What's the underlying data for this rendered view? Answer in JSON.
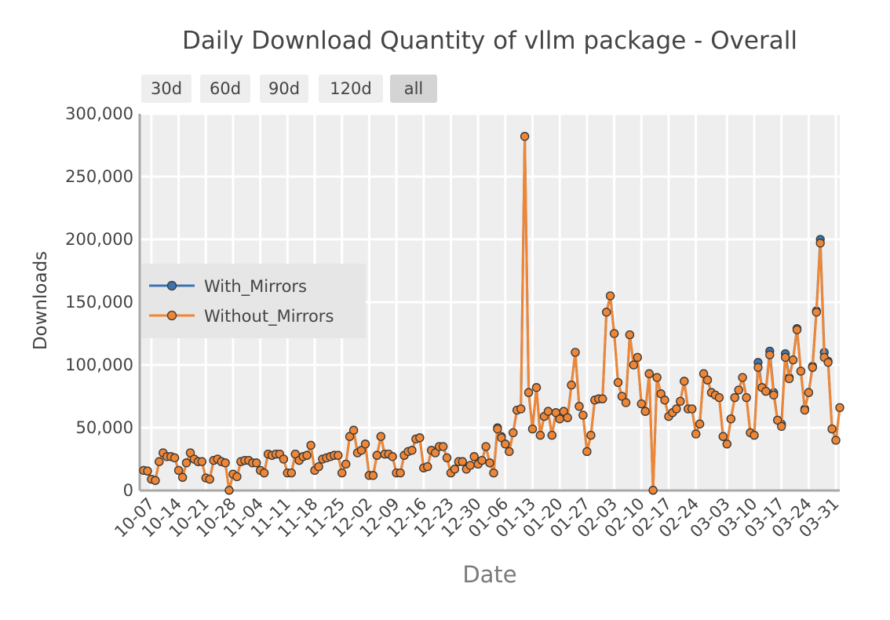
{
  "range_selector": {
    "buttons": [
      "30d",
      "60d",
      "90d",
      "120d",
      "all"
    ],
    "active": "all"
  },
  "colors": {
    "with_mirrors": "#3b75af",
    "without_mirrors": "#ef8636",
    "plot_bg": "#eeeeee",
    "grid": "#ffffff",
    "marker_outline": "#3a3a3a"
  },
  "chart_data": {
    "type": "line",
    "title": "Daily Download Quantity of vllm package - Overall",
    "xlabel": "Date",
    "ylabel": "Downloads",
    "x_start": "2023-10-05",
    "x_tick_labels": [
      "10-07",
      "10-14",
      "10-21",
      "10-28",
      "11-04",
      "11-11",
      "11-18",
      "11-25",
      "12-02",
      "12-09",
      "12-16",
      "12-23",
      "12-30",
      "01-06",
      "01-13",
      "01-20",
      "01-27",
      "02-03",
      "02-10",
      "02-17",
      "02-24",
      "03-03",
      "03-10",
      "03-17",
      "03-24",
      "03-31"
    ],
    "y_ticks": [
      0,
      50000,
      100000,
      150000,
      200000,
      250000,
      300000
    ],
    "y_tick_labels": [
      "0",
      "50,000",
      "100,000",
      "150,000",
      "200,000",
      "250,000",
      "300,000"
    ],
    "ylim": [
      0,
      300000
    ],
    "grid": true,
    "legend_position": "middle-left",
    "series": [
      {
        "name": "With_Mirrors",
        "values": [
          16000,
          15500,
          9000,
          8000,
          23000,
          30000,
          27000,
          27000,
          26000,
          16000,
          10500,
          22000,
          30000,
          25000,
          23000,
          23000,
          10000,
          9000,
          24000,
          25000,
          23000,
          22000,
          200,
          13000,
          11000,
          23000,
          24000,
          24000,
          22000,
          22000,
          16000,
          14000,
          29000,
          28000,
          29000,
          29000,
          25000,
          14000,
          14000,
          29000,
          24000,
          27000,
          28000,
          36000,
          16000,
          19000,
          25000,
          26000,
          27000,
          28000,
          28000,
          14000,
          21000,
          43000,
          48000,
          30000,
          32000,
          37000,
          12000,
          12000,
          28000,
          43000,
          29000,
          29000,
          27000,
          14000,
          14000,
          28000,
          31000,
          32000,
          41000,
          42000,
          18000,
          19000,
          32000,
          30000,
          35000,
          35000,
          26000,
          14000,
          17000,
          23000,
          23000,
          17000,
          20000,
          27000,
          21000,
          24000,
          35000,
          22000,
          14000,
          50000,
          43000,
          37000,
          31000,
          46000,
          64000,
          65000,
          282000,
          78000,
          49000,
          82000,
          44000,
          59000,
          63000,
          44000,
          62000,
          57000,
          63000,
          58000,
          84000,
          110000,
          67000,
          60000,
          31000,
          44000,
          72000,
          73000,
          73000,
          142000,
          155000,
          125000,
          86000,
          75000,
          70000,
          124000,
          100000,
          106000,
          69000,
          63000,
          93000,
          200,
          90000,
          77000,
          72000,
          59000,
          62000,
          65000,
          71000,
          87000,
          65000,
          65000,
          45000,
          53000,
          93000,
          88000,
          78000,
          76000,
          74000,
          43000,
          37000,
          57000,
          74000,
          80000,
          90000,
          74000,
          46000,
          44000,
          102000,
          82000,
          79000,
          111000,
          78000,
          56000,
          53000,
          109000,
          90000,
          104000,
          129000,
          95000,
          65000,
          78000,
          99000,
          143000,
          200000,
          110000,
          103000,
          49000,
          40000,
          66000
        ]
      },
      {
        "name": "Without_Mirrors",
        "values": [
          16000,
          15500,
          9000,
          8000,
          23000,
          30000,
          27000,
          27000,
          26000,
          16000,
          10500,
          22000,
          30000,
          25000,
          23000,
          23000,
          10000,
          9000,
          24000,
          25000,
          23000,
          22000,
          200,
          13000,
          11000,
          23000,
          24000,
          24000,
          22000,
          22000,
          16000,
          14000,
          29000,
          28000,
          29000,
          29000,
          25000,
          14000,
          14000,
          29000,
          24000,
          27000,
          28000,
          36000,
          16000,
          19000,
          25000,
          26000,
          27000,
          28000,
          28000,
          14000,
          21000,
          43000,
          48000,
          30000,
          32000,
          37000,
          12000,
          12000,
          28000,
          43000,
          29000,
          29000,
          27000,
          14000,
          14000,
          28000,
          31000,
          32000,
          41000,
          42000,
          18000,
          19000,
          32000,
          30000,
          35000,
          35000,
          26000,
          14000,
          17000,
          23000,
          23000,
          17000,
          20000,
          27000,
          21000,
          24000,
          35000,
          22000,
          14000,
          49000,
          42000,
          37000,
          31000,
          46000,
          64000,
          65000,
          282000,
          78000,
          49000,
          82000,
          44000,
          59000,
          63000,
          44000,
          62000,
          57000,
          63000,
          58000,
          84000,
          110000,
          67000,
          60000,
          31000,
          44000,
          72000,
          73000,
          73000,
          142000,
          155000,
          125000,
          86000,
          75000,
          70000,
          124000,
          100000,
          106000,
          69000,
          63000,
          93000,
          200,
          90000,
          77000,
          72000,
          59000,
          62000,
          65000,
          71000,
          87000,
          65000,
          65000,
          45000,
          53000,
          93000,
          88000,
          78000,
          76000,
          74000,
          43000,
          37000,
          57000,
          74000,
          80000,
          90000,
          74000,
          46000,
          44000,
          98000,
          82000,
          79000,
          108000,
          76000,
          56000,
          51000,
          106000,
          89000,
          104000,
          128000,
          95000,
          64000,
          78000,
          98000,
          142000,
          197000,
          106000,
          102000,
          49000,
          40000,
          66000
        ]
      }
    ]
  }
}
